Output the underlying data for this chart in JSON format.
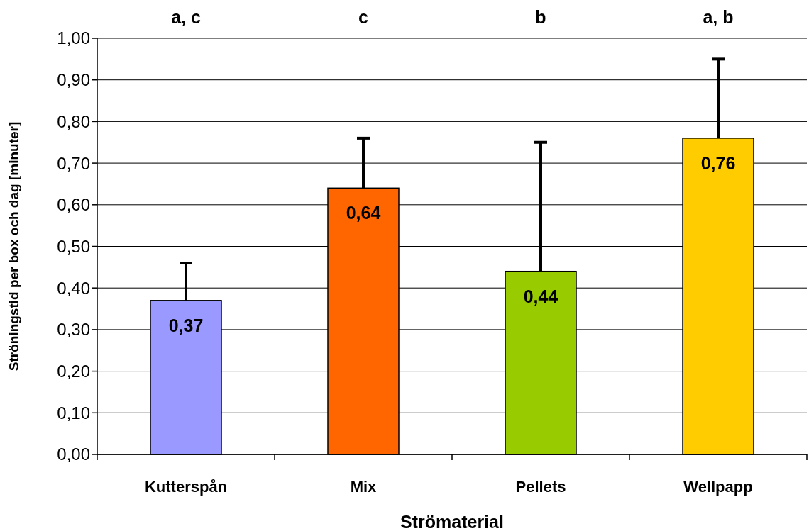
{
  "chart_data": {
    "type": "bar",
    "xlabel": "Strömaterial",
    "ylabel": "Ströningstid per box och dag [minuter]",
    "categories": [
      "Kutterspån",
      "Mix",
      "Pellets",
      "Wellpapp"
    ],
    "values": [
      0.37,
      0.64,
      0.44,
      0.76
    ],
    "colors": [
      "#9999ff",
      "#ff6600",
      "#99cc00",
      "#ffcc00"
    ],
    "errors": [
      [
        0.37,
        0.46
      ],
      [
        0.64,
        0.76
      ],
      [
        0.44,
        0.75
      ],
      [
        0.76,
        0.95
      ]
    ],
    "value_labels": [
      "0,37",
      "0,64",
      "0,44",
      "0,76"
    ],
    "annotations": [
      "a, c",
      "c",
      "b",
      "a, b"
    ],
    "ylim": [
      0,
      1
    ],
    "yticks": [
      {
        "value": 0,
        "label": "0,00"
      },
      {
        "value": 0.1,
        "label": "0,10"
      },
      {
        "value": 0.2,
        "label": "0,20"
      },
      {
        "value": 0.3,
        "label": "0,30"
      },
      {
        "value": 0.4,
        "label": "0,40"
      },
      {
        "value": 0.5,
        "label": "0,50"
      },
      {
        "value": 0.6,
        "label": "0,60"
      },
      {
        "value": 0.7,
        "label": "0,70"
      },
      {
        "value": 0.8,
        "label": "0,80"
      },
      {
        "value": 0.9,
        "label": "0,90"
      },
      {
        "value": 1,
        "label": "1,00"
      }
    ],
    "grid": "y"
  }
}
